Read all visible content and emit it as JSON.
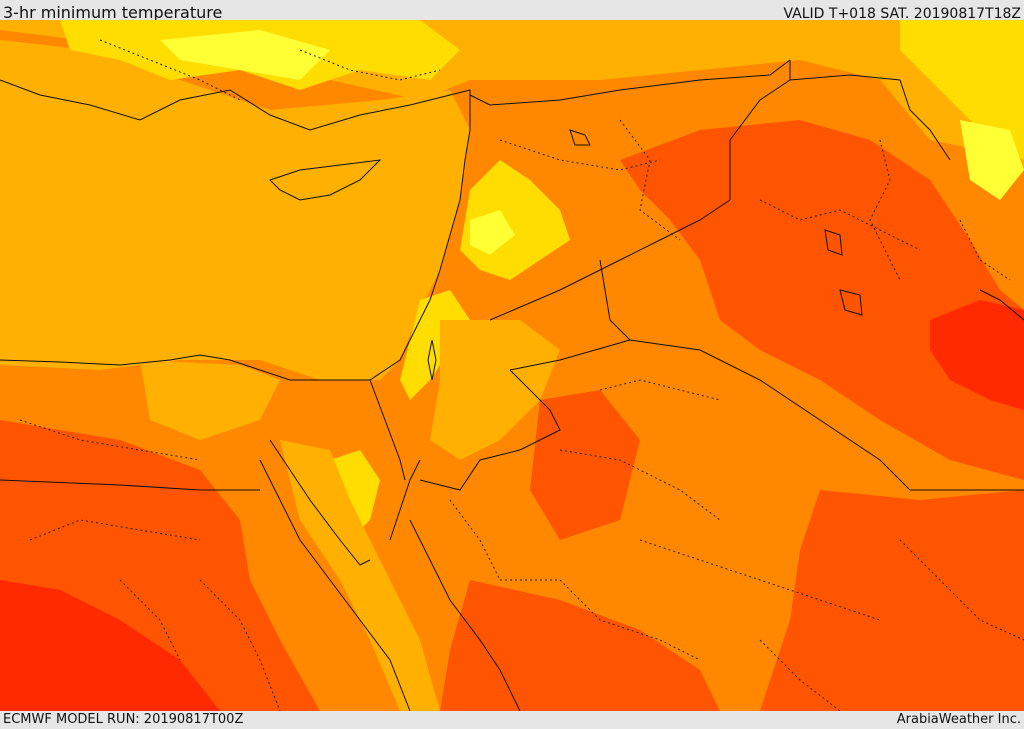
{
  "header": {
    "title": "3-hr minimum temperature",
    "valid_label": "VALID T+018 SAT. 20190817T18Z"
  },
  "footer": {
    "model_run": "ECMWF MODEL RUN: 20190817T00Z",
    "credit": "ArabiaWeather Inc."
  },
  "map": {
    "palette": {
      "lightest": "#ffff33",
      "light": "#ffdd00",
      "base": "#ffb000",
      "mid": "#ff8800",
      "warm": "#ff5500",
      "hot": "#ff2a00"
    },
    "boundary_color": "#111111"
  }
}
